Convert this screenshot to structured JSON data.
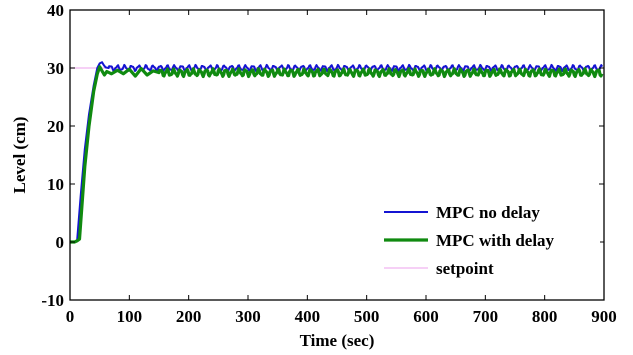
{
  "chart_data": {
    "type": "line",
    "xlabel": "Time (sec)",
    "ylabel": "Level (cm)",
    "xlim": [
      0,
      900
    ],
    "ylim": [
      -10,
      40
    ],
    "xticks": [
      0,
      100,
      200,
      300,
      400,
      500,
      600,
      700,
      800,
      900
    ],
    "yticks": [
      -10,
      0,
      10,
      20,
      30,
      40
    ],
    "grid": false,
    "legend_position": "bottom-right",
    "series": [
      {
        "name": "MPC no delay",
        "color": "#1414d2",
        "ripple": {
          "start": 65,
          "mean": 30.0,
          "amp": 0.4,
          "period": 12
        },
        "x": [
          0,
          8,
          12,
          18,
          25,
          32,
          40,
          46,
          50,
          54,
          57,
          60,
          65
        ],
        "y": [
          0,
          0,
          0.2,
          8,
          16,
          22,
          27,
          30,
          30.8,
          31.0,
          30.5,
          30.1,
          30.0
        ]
      },
      {
        "name": "MPC with delay",
        "color": "#108a10",
        "ripple": {
          "start": 150,
          "mean": 29.2,
          "amp": 0.5,
          "period": 11
        },
        "x": [
          0,
          8,
          12,
          16,
          25,
          32,
          40,
          46,
          50,
          54,
          58,
          62,
          70,
          80,
          90,
          100,
          110,
          120,
          130,
          140,
          150
        ],
        "y": [
          0,
          0,
          0.2,
          0.5,
          13,
          20,
          26,
          29,
          30.2,
          29.5,
          28.8,
          29.4,
          29.0,
          29.6,
          29.0,
          29.8,
          28.6,
          29.9,
          28.8,
          29.5,
          29.2
        ]
      },
      {
        "name": "setpoint",
        "color": "#f0b4f0",
        "x": [
          0,
          900
        ],
        "y": [
          30,
          30
        ]
      }
    ]
  }
}
